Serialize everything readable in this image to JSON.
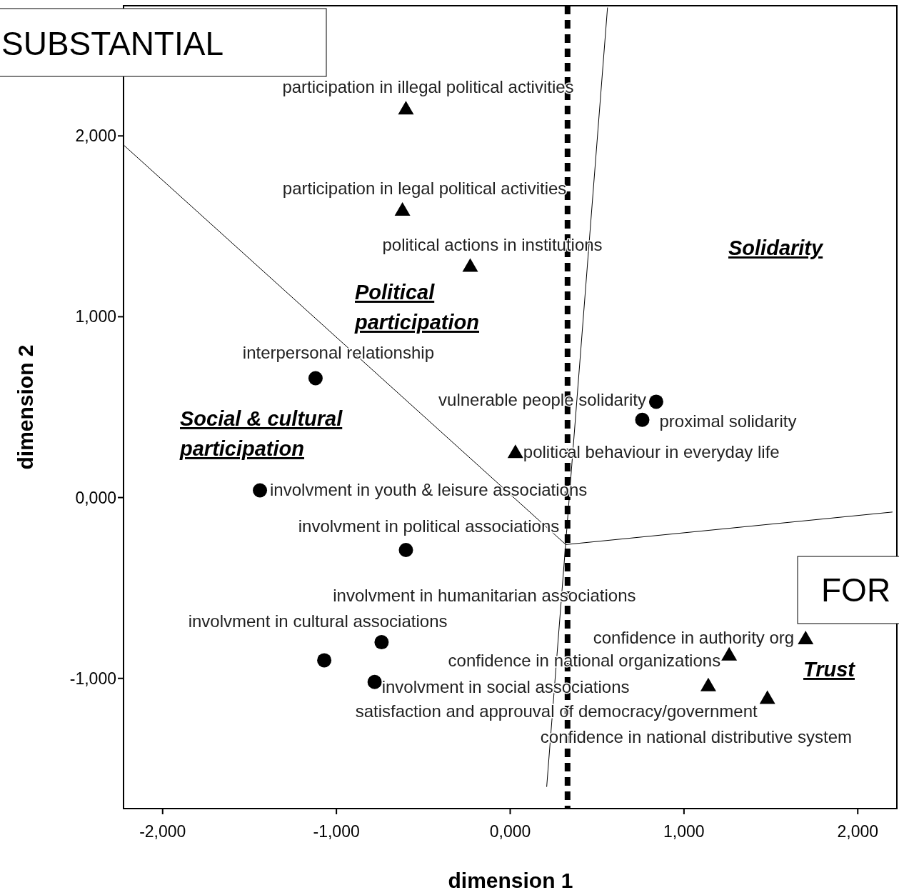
{
  "chart_data": {
    "type": "scatter",
    "xlabel": "dimension 1",
    "ylabel": "dimension 2",
    "xlim": [
      -2.225,
      2.225
    ],
    "ylim": [
      -1.72,
      2.72
    ],
    "xticks": [
      {
        "value": -2,
        "label": "-2,000"
      },
      {
        "value": -1,
        "label": "-1,000"
      },
      {
        "value": 0,
        "label": "0,000"
      },
      {
        "value": 1,
        "label": "1,000"
      },
      {
        "value": 2,
        "label": "2,000"
      }
    ],
    "yticks": [
      {
        "value": -1,
        "label": "-1,000"
      },
      {
        "value": 0,
        "label": "0,000"
      },
      {
        "value": 1,
        "label": "1,000"
      },
      {
        "value": 2,
        "label": "2,000"
      }
    ],
    "grid": false,
    "series": [
      {
        "type": "scatter",
        "marker": "triangle",
        "color": "#000000",
        "x": [
          -0.6,
          -0.62,
          -0.23,
          0.03
        ],
        "values": [
          2.15,
          1.59,
          1.28,
          0.25
        ]
      },
      {
        "type": "scatter",
        "marker": "circle",
        "color": "#000000",
        "x": [
          -1.12,
          -1.44,
          -0.6,
          -0.74,
          -1.07,
          -0.78
        ],
        "values": [
          0.66,
          0.04,
          -0.29,
          -0.8,
          -0.9,
          -1.02
        ]
      },
      {
        "type": "scatter",
        "marker": "circle",
        "color": "#000000",
        "x": [
          0.84,
          0.76
        ],
        "values": [
          0.53,
          0.43
        ]
      },
      {
        "type": "scatter",
        "marker": "triangle",
        "color": "#000000",
        "x": [
          1.7,
          1.26,
          1.14,
          1.48
        ],
        "values": [
          -0.78,
          -0.87,
          -1.04,
          -1.11
        ]
      },
      {
        "type": "line",
        "marker": "none",
        "color": "#000000",
        "x": [
          -2.225,
          0.32
        ],
        "values": [
          1.95,
          -0.26
        ]
      },
      {
        "type": "line",
        "marker": "none",
        "color": "#000000",
        "x": [
          0.32,
          2.2
        ],
        "values": [
          -0.26,
          -0.08
        ]
      },
      {
        "type": "line",
        "marker": "none",
        "color": "#000000",
        "x": [
          0.21,
          0.56
        ],
        "values": [
          -1.6,
          2.71
        ]
      }
    ],
    "ref_lines": [
      {
        "axis": "x",
        "value": 0.33,
        "color": "#000000",
        "line_style": "dashed"
      }
    ],
    "annotations": [
      "SUBSTANTIAL",
      "FOR",
      "Solidarity",
      "Political participation",
      "Social & cultural participation",
      "Trust",
      {
        "text": "participation in illegal political activities",
        "x": -0.6,
        "y": 2.15
      },
      {
        "text": "participation in legal political activities",
        "x": -0.62,
        "y": 1.59
      },
      {
        "text": "political actions in institutions",
        "x": -0.23,
        "y": 1.28
      },
      {
        "text": "political behaviour in everyday life",
        "x": 0.03,
        "y": 0.25
      },
      {
        "text": "interpersonal relationship",
        "x": -1.12,
        "y": 0.66
      },
      {
        "text": "involvment in youth & leisure associations",
        "x": -1.44,
        "y": 0.04
      },
      {
        "text": "involvment in political associations",
        "x": -0.6,
        "y": -0.29
      },
      {
        "text": "involvment in humanitarian associations",
        "x": -0.74,
        "y": -0.8
      },
      {
        "text": "involvment in cultural associations",
        "x": -1.07,
        "y": -0.9
      },
      {
        "text": "involvment in social associations",
        "x": -0.78,
        "y": -1.02
      },
      {
        "text": "vulnerable people solidarity",
        "x": 0.84,
        "y": 0.53
      },
      {
        "text": "proximal solidarity",
        "x": 0.76,
        "y": 0.43
      },
      {
        "text": "confidence in authority org",
        "x": 1.7,
        "y": -0.78
      },
      {
        "text": "confidence in national organizations",
        "x": 1.26,
        "y": -0.87
      },
      {
        "text": "confidence in national distributive system",
        "x": 1.14,
        "y": -1.04
      },
      {
        "text": "satisfaction and approuval of democracy/government",
        "x": 1.48,
        "y": -1.11
      }
    ]
  }
}
